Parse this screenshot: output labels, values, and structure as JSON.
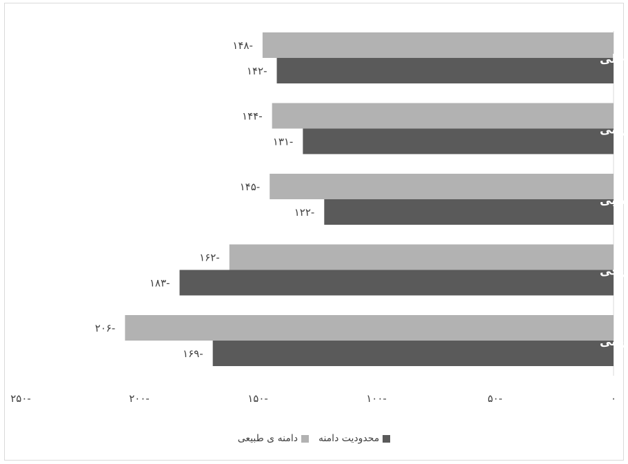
{
  "colors": {
    "series_1": "#5a5a5a",
    "series_2": "#b2b2b2",
    "axis": "#d9d9d9",
    "text": "#404040"
  },
  "chart_data": {
    "type": "bar",
    "orientation": "horizontal",
    "categories": [
      "پهن داخلی",
      "دوسررانی",
      "نیم غشایی",
      "پهن خارجی",
      "راست رانی"
    ],
    "series": [
      {
        "name": "محدودیت دامنه",
        "values": [
          -142,
          -131,
          -122,
          -183,
          -169
        ],
        "labels": [
          "۱۴۲-",
          "۱۳۱-",
          "۱۲۲-",
          "۱۸۳-",
          "۱۶۹-"
        ]
      },
      {
        "name": "دامنه ی طبیعی",
        "values": [
          -148,
          -144,
          -145,
          -162,
          -206
        ],
        "labels": [
          "۱۴۸-",
          "۱۴۴-",
          "۱۴۵-",
          "۱۶۲-",
          "۲۰۶-"
        ]
      }
    ],
    "xlim": [
      -250,
      0
    ],
    "xticks": [
      0,
      -50,
      -100,
      -150,
      -200,
      -250
    ],
    "xtick_labels": [
      "۰",
      "۵۰-",
      "۱۰۰-",
      "۱۵۰-",
      "۲۰۰-",
      "۲۵۰-"
    ],
    "legend_position": "bottom",
    "grid": false
  }
}
